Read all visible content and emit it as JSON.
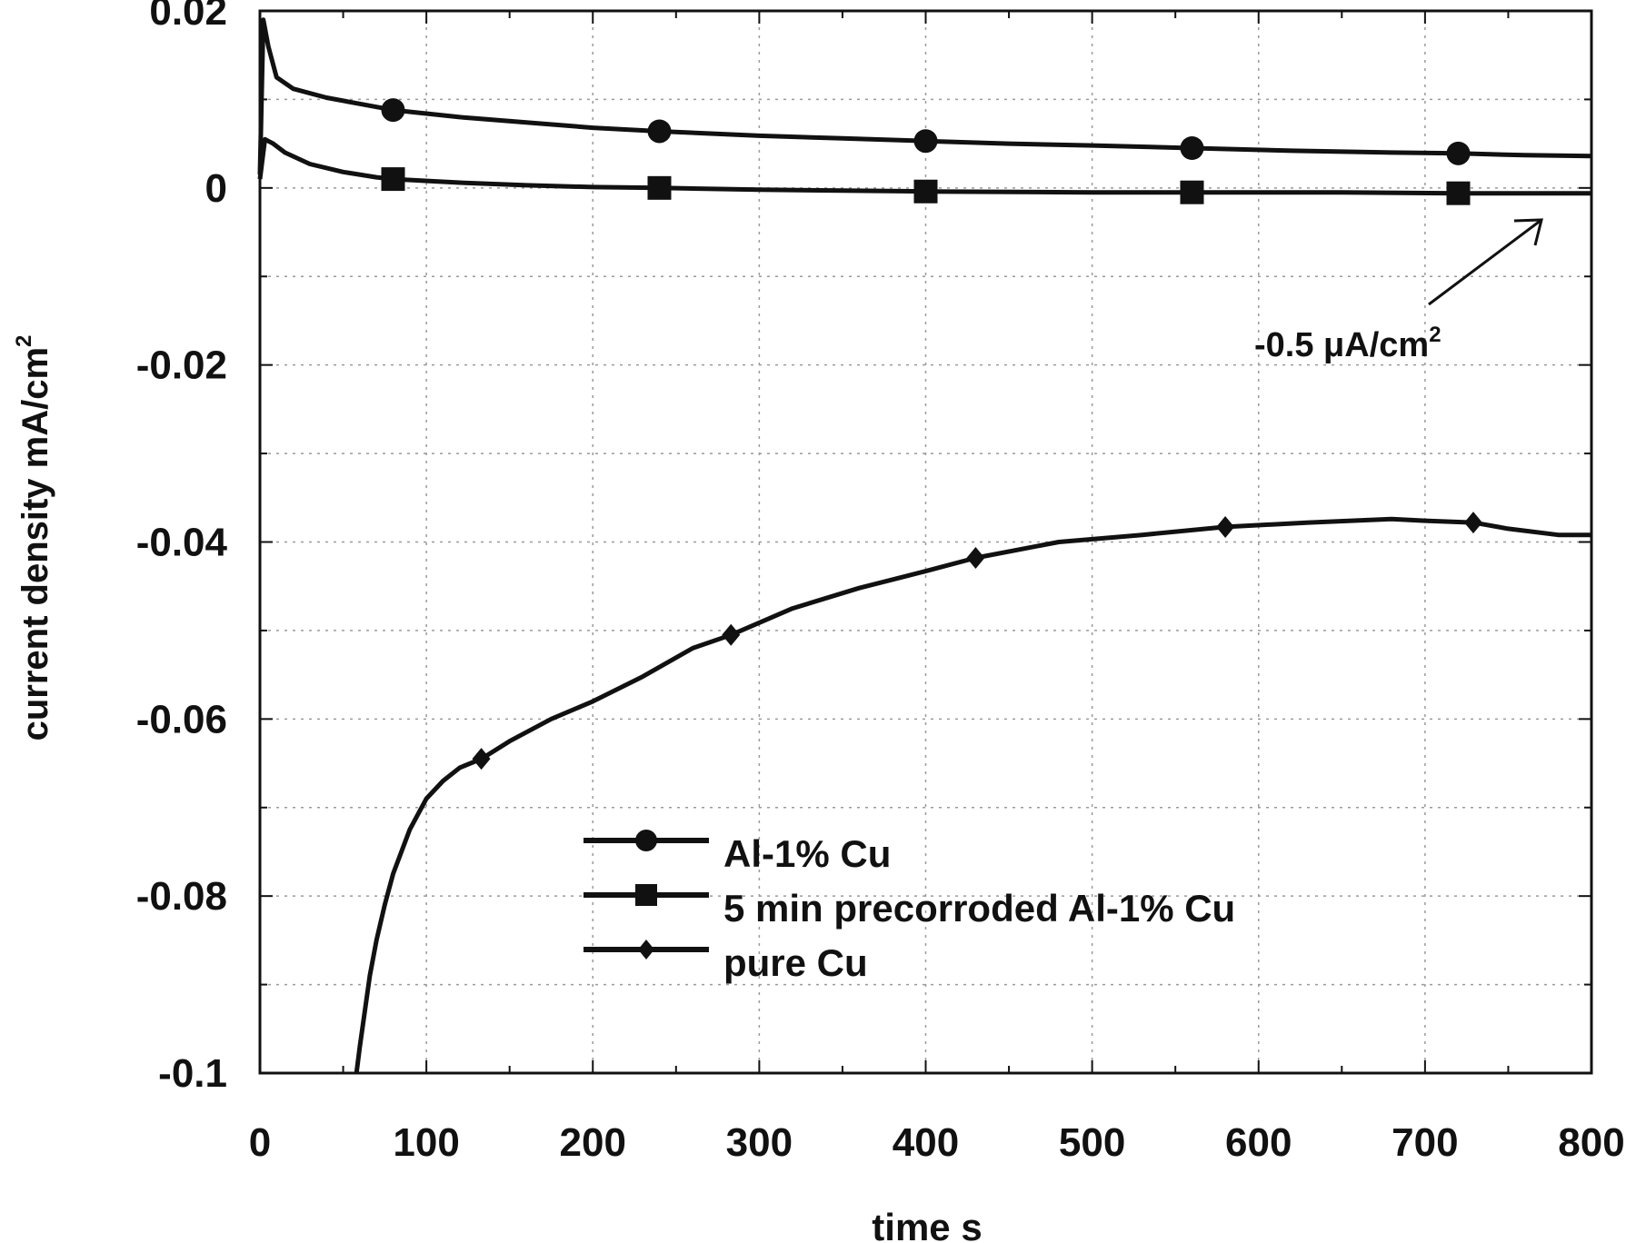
{
  "chart_data": {
    "type": "line",
    "xlabel": "time s",
    "ylabel": "current density mA/cm",
    "ylabel_sup": "2",
    "xlim": [
      0,
      800
    ],
    "ylim": [
      -0.1,
      0.02
    ],
    "xticks": [
      0,
      100,
      200,
      300,
      400,
      500,
      600,
      700,
      800
    ],
    "xtick_labels": [
      "0",
      "100",
      "200",
      "300",
      "400",
      "500",
      "600",
      "700",
      "800"
    ],
    "yticks": [
      0.02,
      0,
      -0.02,
      -0.04,
      -0.06,
      -0.08,
      -0.1
    ],
    "ytick_labels": [
      "0.02",
      "0",
      "-0.02",
      "-0.04",
      "-0.06",
      "-0.08",
      "-0.1"
    ],
    "grid": true,
    "legend_position": "bottom-center",
    "annotation": {
      "text": "-0.5 μA/cm",
      "sup": "2",
      "points_to": [
        770,
        -0.0005
      ]
    },
    "series": [
      {
        "name": "Al-1% Cu",
        "marker": "circle",
        "x": [
          0,
          2,
          5,
          10,
          20,
          40,
          60,
          80,
          120,
          160,
          200,
          240,
          300,
          350,
          400,
          450,
          500,
          560,
          620,
          680,
          720,
          760,
          800
        ],
        "y": [
          0.0015,
          0.019,
          0.016,
          0.0125,
          0.0112,
          0.0102,
          0.0095,
          0.0088,
          0.008,
          0.0074,
          0.0068,
          0.0064,
          0.0059,
          0.0056,
          0.0053,
          0.005,
          0.0048,
          0.0045,
          0.0042,
          0.004,
          0.0039,
          0.0037,
          0.0036
        ],
        "marker_x": [
          80,
          240,
          400,
          560,
          720
        ],
        "marker_y": [
          0.0088,
          0.0064,
          0.0053,
          0.0045,
          0.0039
        ]
      },
      {
        "name": "5 min precorroded Al-1% Cu",
        "marker": "square",
        "x": [
          0,
          3,
          8,
          15,
          30,
          50,
          70,
          80,
          120,
          160,
          200,
          240,
          300,
          400,
          500,
          560,
          650,
          720,
          800
        ],
        "y": [
          0.001,
          0.0055,
          0.005,
          0.004,
          0.0027,
          0.0018,
          0.0012,
          0.001,
          0.0006,
          0.0003,
          0.0001,
          0.0,
          -0.0002,
          -0.0004,
          -0.0005,
          -0.0005,
          -0.0005,
          -0.0006,
          -0.0006
        ],
        "marker_x": [
          80,
          240,
          400,
          560,
          720
        ],
        "marker_y": [
          0.001,
          0.0,
          -0.0004,
          -0.0005,
          -0.0006
        ]
      },
      {
        "name": "pure Cu",
        "marker": "diamond",
        "x": [
          58,
          60,
          63,
          66,
          70,
          75,
          80,
          90,
          100,
          110,
          120,
          133,
          150,
          175,
          200,
          230,
          260,
          283,
          320,
          360,
          400,
          430,
          480,
          530,
          580,
          630,
          680,
          700,
          729,
          750,
          780,
          800
        ],
        "y": [
          -0.1,
          -0.097,
          -0.093,
          -0.089,
          -0.085,
          -0.081,
          -0.0775,
          -0.0725,
          -0.069,
          -0.067,
          -0.0655,
          -0.0645,
          -0.0625,
          -0.06,
          -0.058,
          -0.0552,
          -0.052,
          -0.0505,
          -0.0475,
          -0.0452,
          -0.0433,
          -0.0418,
          -0.04,
          -0.0392,
          -0.0383,
          -0.0378,
          -0.0374,
          -0.0376,
          -0.0378,
          -0.0385,
          -0.0392,
          -0.0392
        ],
        "marker_x": [
          133,
          283,
          430,
          580,
          729
        ],
        "marker_y": [
          -0.0645,
          -0.0505,
          -0.0418,
          -0.0383,
          -0.0378
        ]
      }
    ]
  }
}
